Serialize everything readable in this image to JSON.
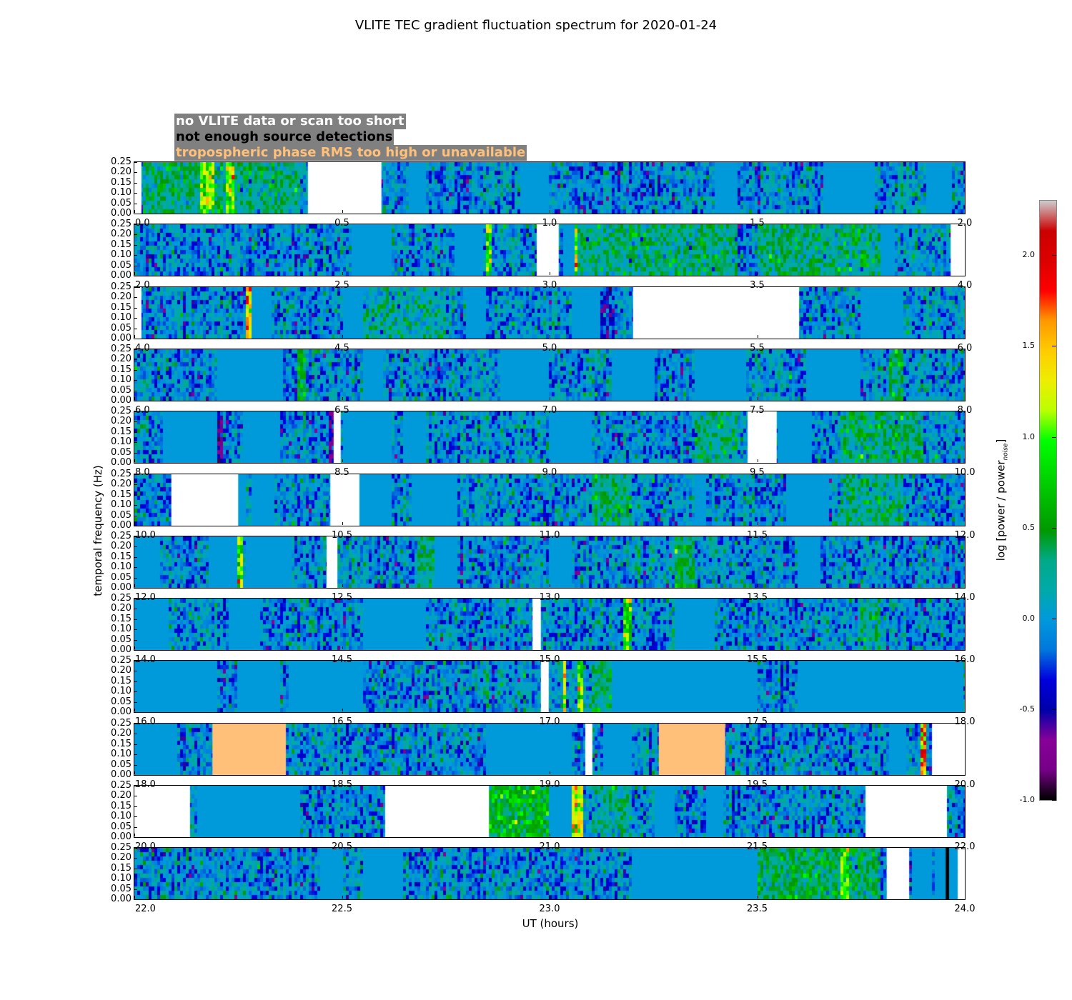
{
  "chart_data": {
    "type": "heatmap",
    "title": "VLITE TEC gradient fluctuation spectrum for 2020-01-24",
    "xlabel": "UT (hours)",
    "ylabel": "temporal frequency (Hz)",
    "ylim": [
      0,
      0.25
    ],
    "yticks": [
      "0.00",
      "0.05",
      "0.10",
      "0.15",
      "0.20",
      "0.25"
    ],
    "legend": [
      {
        "text": "no VLITE data or scan too short",
        "color": "#ffffff"
      },
      {
        "text": "not enough source detections",
        "color": "#000000"
      },
      {
        "text": "tropospheric phase RMS too high or unavailable",
        "color": "#ffc07a"
      }
    ],
    "colorbar": {
      "label": "log [power / power",
      "label_sub": "noise",
      "label_end": "]",
      "colormap": "nipy_spectral",
      "vmin": -1.0,
      "vmax": 2.3,
      "ticks": [
        "-1.0",
        "-0.5",
        "0.0",
        "0.5",
        "1.0",
        "1.5",
        "2.0"
      ],
      "tick_values": [
        -1.0,
        -0.5,
        0.0,
        0.5,
        1.0,
        1.5,
        2.0
      ]
    },
    "flag_colors": {
      "no_data": "#ffffff",
      "few_detections": "#000000",
      "tropo": "#ffc07a"
    },
    "panels": [
      {
        "xrange": [
          0,
          2
        ],
        "xticks": [
          "0.0",
          "0.5",
          "1.0",
          "1.5",
          "2.0"
        ],
        "no_data": [
          [
            0.0,
            0.017
          ],
          [
            0.418,
            0.595
          ]
        ],
        "few_detections": [],
        "tropo": [],
        "quiet": [
          [
            0.66,
            0.7
          ],
          [
            0.93,
            1.0
          ],
          [
            1.4,
            1.45
          ],
          [
            1.66,
            1.78
          ],
          [
            1.91,
            1.97
          ]
        ],
        "features": [
          [
            0.02,
            0.4,
            0.3
          ],
          [
            0.16,
            0.19,
            1.1
          ],
          [
            0.22,
            0.24,
            1.0
          ]
        ]
      },
      {
        "xrange": [
          2,
          4
        ],
        "xticks": [
          "2.0",
          "2.5",
          "3.0",
          "3.5",
          "4.0"
        ],
        "no_data": [
          [
            2.969,
            3.022
          ],
          [
            3.966,
            4.0
          ]
        ],
        "few_detections": [],
        "tropo": [],
        "quiet": [
          [
            2.52,
            2.62
          ],
          [
            2.77,
            2.84
          ],
          [
            3.03,
            3.06
          ],
          [
            3.8,
            3.83
          ]
        ],
        "features": [
          [
            2.85,
            2.86,
            1.0
          ],
          [
            3.06,
            3.07,
            1.3
          ],
          [
            3.07,
            3.45,
            0.3
          ],
          [
            3.5,
            3.8,
            0.3
          ]
        ]
      },
      {
        "xrange": [
          4,
          6
        ],
        "xticks": [
          "4.0",
          "4.5",
          "5.0",
          "5.5",
          "6.0"
        ],
        "no_data": [
          [
            4.0,
            4.017
          ],
          [
            5.201,
            5.601
          ]
        ],
        "few_detections": [],
        "tropo": [],
        "quiet": [
          [
            4.28,
            4.33
          ],
          [
            4.5,
            4.55
          ],
          [
            4.8,
            4.85
          ],
          [
            5.05,
            5.12
          ],
          [
            5.75,
            5.85
          ]
        ],
        "features": [
          [
            4.27,
            4.28,
            1.5
          ],
          [
            4.55,
            4.75,
            0.2
          ],
          [
            5.12,
            5.16,
            -0.4
          ]
        ]
      },
      {
        "xrange": [
          6,
          8
        ],
        "xticks": [
          "6.0",
          "6.5",
          "7.0",
          "7.5",
          "8.0"
        ],
        "no_data": [],
        "few_detections": [],
        "tropo": [],
        "quiet": [
          [
            6.2,
            6.36
          ],
          [
            6.55,
            6.6
          ],
          [
            6.88,
            7.0
          ],
          [
            7.15,
            7.25
          ],
          [
            7.35,
            7.47
          ],
          [
            7.62,
            7.75
          ]
        ],
        "features": [
          [
            6.39,
            6.41,
            0.5
          ],
          [
            7.82,
            7.85,
            0.4
          ]
        ]
      },
      {
        "xrange": [
          8,
          10
        ],
        "xticks": [
          "8.0",
          "8.5",
          "9.0",
          "9.5",
          "10.0"
        ],
        "no_data": [
          [
            8.48,
            8.497
          ],
          [
            9.477,
            9.547
          ]
        ],
        "few_detections": [],
        "tropo": [],
        "quiet": [
          [
            8.07,
            8.2
          ],
          [
            8.26,
            8.35
          ],
          [
            8.5,
            8.62
          ],
          [
            8.65,
            8.7
          ],
          [
            9.0,
            9.1
          ],
          [
            9.55,
            9.63
          ]
        ],
        "features": [
          [
            8.2,
            8.21,
            -0.6
          ],
          [
            8.47,
            8.48,
            -0.5
          ],
          [
            9.35,
            9.45,
            0.3
          ],
          [
            9.7,
            9.9,
            0.3
          ]
        ]
      },
      {
        "xrange": [
          10,
          12
        ],
        "xticks": [
          "10.0",
          "10.5",
          "11.0",
          "11.5",
          "12.0"
        ],
        "no_data": [
          [
            10.089,
            10.25
          ],
          [
            10.472,
            10.542
          ]
        ],
        "few_detections": [],
        "tropo": [],
        "quiet": [
          [
            10.25,
            10.27
          ],
          [
            10.28,
            10.34
          ],
          [
            10.54,
            10.62
          ],
          [
            10.67,
            10.78
          ],
          [
            11.35,
            11.38
          ],
          [
            11.57,
            11.67
          ]
        ],
        "features": [
          [
            10.3,
            10.31,
            1.3
          ],
          [
            11.1,
            11.2,
            0.3
          ],
          [
            11.7,
            11.85,
            0.3
          ]
        ]
      },
      {
        "xrange": [
          12,
          14
        ],
        "xticks": [
          "12.0",
          "12.5",
          "13.0",
          "13.5",
          "14.0"
        ],
        "no_data": [
          [
            12.463,
            12.489
          ]
        ],
        "few_detections": [],
        "tropo": [],
        "quiet": [
          [
            12.0,
            12.06
          ],
          [
            12.18,
            12.25
          ],
          [
            12.27,
            12.38
          ],
          [
            12.72,
            12.78
          ],
          [
            13.0,
            13.05
          ],
          [
            13.6,
            13.65
          ]
        ],
        "features": [
          [
            12.25,
            12.26,
            1.0
          ],
          [
            12.68,
            12.72,
            0.3
          ],
          [
            13.3,
            13.35,
            0.4
          ]
        ]
      },
      {
        "xrange": [
          14,
          16
        ],
        "xticks": [
          "14.0",
          "14.5",
          "15.0",
          "15.5",
          "16.0"
        ],
        "no_data": [
          [
            14.959,
            14.979
          ]
        ],
        "few_detections": [],
        "tropo": [],
        "quiet": [
          [
            14.0,
            14.08
          ],
          [
            14.23,
            14.3
          ],
          [
            14.55,
            14.7
          ],
          [
            15.3,
            15.4
          ]
        ],
        "features": [
          [
            15.18,
            15.2,
            0.9
          ],
          [
            15.75,
            15.8,
            0.2
          ]
        ]
      },
      {
        "xrange": [
          16,
          18
        ],
        "xticks": [
          "16.0",
          "16.5",
          "17.0",
          "17.5",
          "18.0"
        ],
        "no_data": [
          [
            16.979,
            16.998
          ]
        ],
        "few_detections": [],
        "tropo": [],
        "quiet": [
          [
            16.0,
            16.2
          ],
          [
            16.25,
            16.35
          ],
          [
            16.37,
            16.55
          ],
          [
            17.15,
            17.5
          ],
          [
            17.6,
            18.0
          ]
        ],
        "features": [
          [
            17.03,
            17.04,
            1.2
          ],
          [
            17.07,
            17.08,
            1.0
          ],
          [
            17.1,
            17.25,
            0.35
          ]
        ]
      },
      {
        "xrange": [
          18,
          20
        ],
        "xticks": [
          "18.0",
          "18.5",
          "19.0",
          "19.5",
          "20.0"
        ],
        "no_data": [
          [
            19.086,
            19.103
          ],
          [
            19.921,
            20.0
          ]
        ],
        "few_detections": [],
        "tropo": [
          [
            18.188,
            18.365
          ],
          [
            19.263,
            19.423
          ]
        ],
        "quiet": [
          [
            18.0,
            18.1
          ],
          [
            18.85,
            19.05
          ],
          [
            19.13,
            19.2
          ],
          [
            19.82,
            19.86
          ]
        ],
        "features": [
          [
            19.89,
            19.91,
            1.6
          ]
        ]
      },
      {
        "xrange": [
          20,
          22
        ],
        "xticks": [
          "20.0",
          "20.5",
          "21.0",
          "21.5",
          "22.0"
        ],
        "no_data": [
          [
            20.0,
            20.134
          ],
          [
            20.604,
            20.854
          ],
          [
            21.761,
            21.957
          ]
        ],
        "few_detections": [],
        "tropo": [],
        "quiet": [
          [
            20.15,
            20.4
          ],
          [
            21.0,
            21.05
          ],
          [
            21.25,
            21.3
          ],
          [
            21.38,
            21.42
          ]
        ],
        "features": [
          [
            20.854,
            21.0,
            0.55
          ],
          [
            21.05,
            21.08,
            1.2
          ],
          [
            21.1,
            21.2,
            0.2
          ]
        ]
      },
      {
        "xrange": [
          22,
          24
        ],
        "xticks": [
          "22.0",
          "22.5",
          "23.0",
          "23.5",
          "24.0"
        ],
        "no_data": [
          [
            23.812,
            23.866
          ],
          [
            23.983,
            24.0
          ]
        ],
        "few_detections": [
          [
            23.954,
            23.962
          ]
        ],
        "tropo": [],
        "quiet": [
          [
            22.45,
            22.5
          ],
          [
            22.55,
            22.65
          ],
          [
            23.2,
            23.5
          ],
          [
            23.87,
            23.92
          ],
          [
            23.93,
            23.954
          ],
          [
            23.962,
            23.983
          ]
        ],
        "features": [
          [
            23.5,
            23.8,
            0.35
          ],
          [
            23.7,
            23.72,
            1.0
          ],
          [
            23.9,
            23.91,
            0.9
          ]
        ]
      }
    ]
  }
}
